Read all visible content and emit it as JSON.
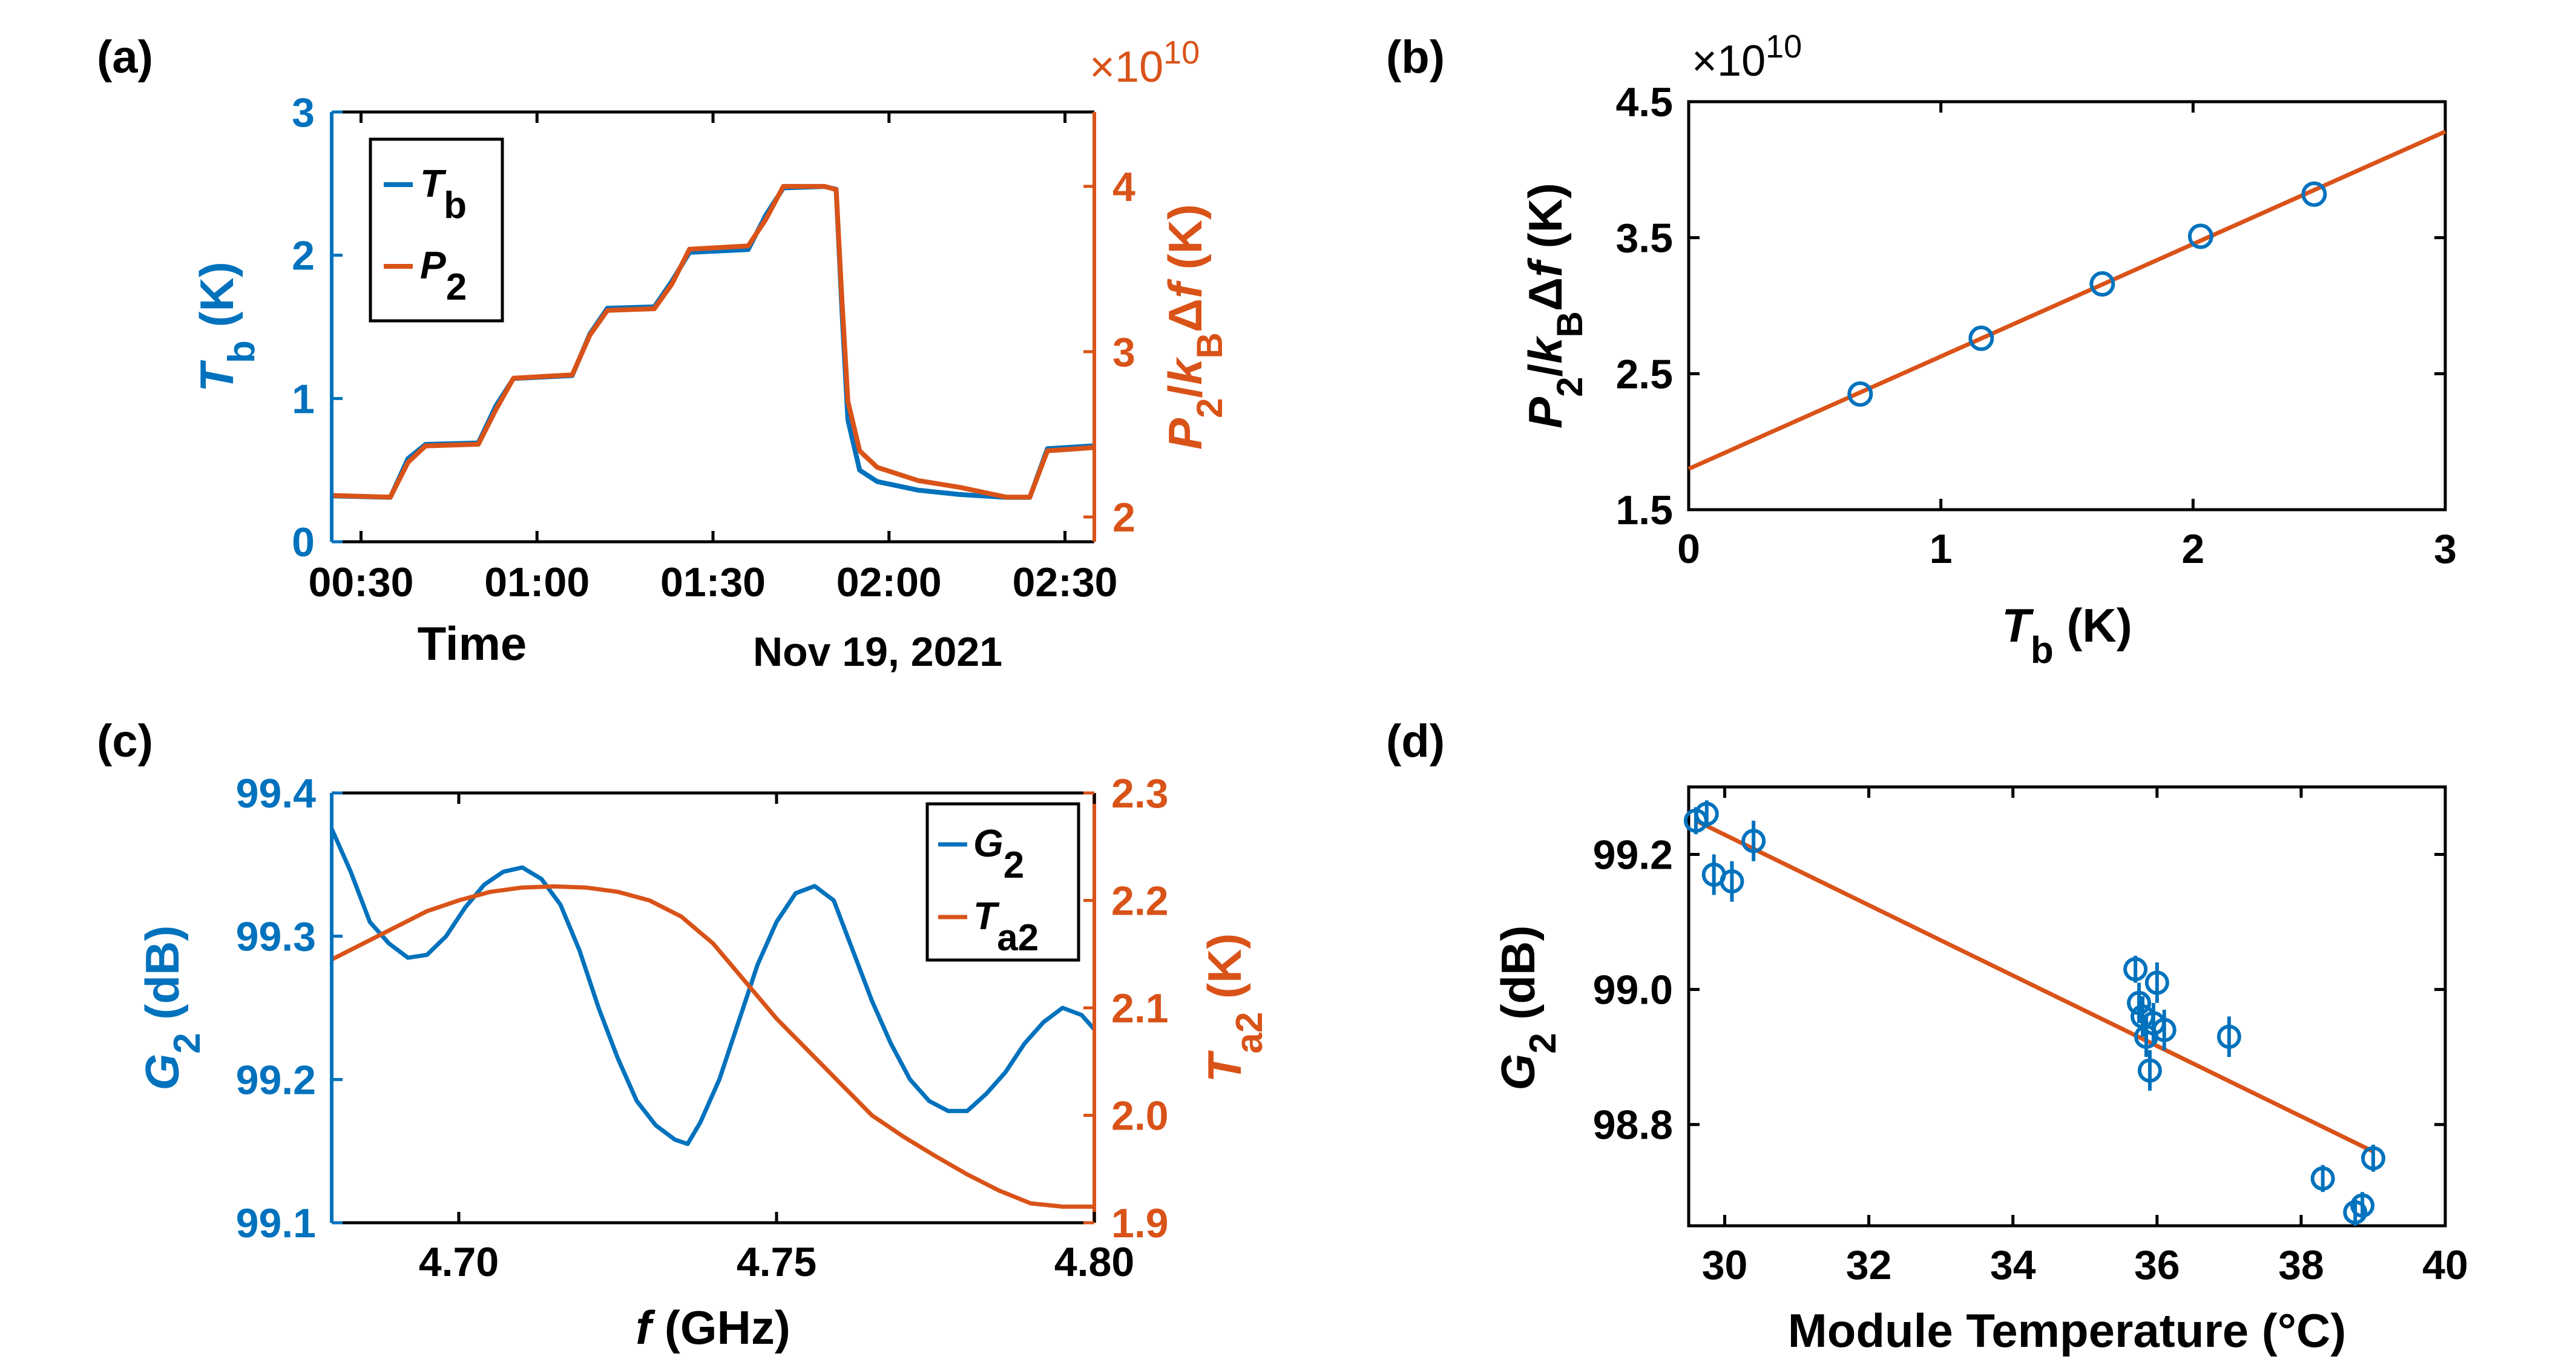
{
  "colors": {
    "blue": "#0072BD",
    "orange": "#D95319",
    "black": "#000000"
  },
  "chart_data": [
    {
      "panel": "(a)",
      "type": "line",
      "xlabel": "Time",
      "xlabel2": "Nov 19, 2021",
      "x_tick_labels": [
        "00:30",
        "01:00",
        "01:30",
        "02:00",
        "02:30"
      ],
      "x_ticks": [
        "00:30",
        "01:00",
        "01:30",
        "02:00",
        "02:30"
      ],
      "xlim": [
        "00:25",
        "02:35"
      ],
      "y_left": {
        "label_main": "T",
        "label_sub": "b",
        "unit": " (K)",
        "ylim": [
          0,
          3
        ],
        "ticks": [
          0,
          1,
          2,
          3
        ],
        "tick_labels": [
          "0",
          "1",
          "2",
          "3"
        ]
      },
      "y_right": {
        "label": "P2/kBΔf (K)",
        "ylim": [
          1.85,
          4.45
        ],
        "ticks": [
          2,
          3,
          4
        ],
        "tick_labels": [
          "2",
          "3",
          "4"
        ],
        "exponent": "×10",
        "exponent_power": "10"
      },
      "legend": {
        "placement": "top-left",
        "entries": [
          {
            "main": "T",
            "sub": "b"
          },
          {
            "main": "P",
            "sub": "2"
          }
        ]
      },
      "series": [
        {
          "name": "Tb",
          "axis": "left",
          "x": [
            "00:25",
            "00:35",
            "00:38",
            "00:41",
            "00:50",
            "00:53",
            "00:56",
            "01:06",
            "01:09",
            "01:12",
            "01:20",
            "01:23",
            "01:26",
            "01:36",
            "01:39",
            "01:42",
            "01:49",
            "01:51",
            "01:52",
            "01:53",
            "01:55",
            "01:58",
            "02:05",
            "02:12",
            "02:20",
            "02:24",
            "02:27",
            "02:35"
          ],
          "y": [
            0.32,
            0.31,
            0.58,
            0.68,
            0.69,
            0.95,
            1.14,
            1.16,
            1.45,
            1.63,
            1.64,
            1.82,
            2.02,
            2.04,
            2.28,
            2.47,
            2.48,
            2.46,
            1.6,
            0.85,
            0.5,
            0.42,
            0.36,
            0.33,
            0.31,
            0.31,
            0.65,
            0.67
          ]
        },
        {
          "name": "P2",
          "axis": "right",
          "x": [
            "00:25",
            "00:35",
            "00:38",
            "00:41",
            "00:50",
            "00:53",
            "00:56",
            "01:06",
            "01:09",
            "01:12",
            "01:20",
            "01:23",
            "01:26",
            "01:36",
            "01:39",
            "01:42",
            "01:49",
            "01:51",
            "01:52",
            "01:53",
            "01:55",
            "01:58",
            "02:05",
            "02:12",
            "02:20",
            "02:24",
            "02:27",
            "02:35"
          ],
          "y": [
            2.13,
            2.12,
            2.33,
            2.43,
            2.44,
            2.65,
            2.84,
            2.86,
            3.1,
            3.25,
            3.26,
            3.41,
            3.62,
            3.64,
            3.8,
            4.0,
            4.0,
            3.98,
            3.3,
            2.7,
            2.4,
            2.3,
            2.22,
            2.18,
            2.12,
            2.12,
            2.4,
            2.42
          ]
        }
      ]
    },
    {
      "panel": "(b)",
      "type": "scatter",
      "xlabel_main": "T",
      "xlabel_sub": "b",
      "xlabel_unit": " (K)",
      "ylabel": "P2/kBΔf (K)",
      "xlim": [
        0,
        3
      ],
      "ylim": [
        1.5,
        4.5
      ],
      "x_ticks": [
        0,
        1,
        2,
        3
      ],
      "x_tick_labels": [
        "0",
        "1",
        "2",
        "3"
      ],
      "y_ticks": [
        1.5,
        2.5,
        3.5,
        4.5
      ],
      "y_tick_labels": [
        "1.5",
        "2.5",
        "3.5",
        "4.5"
      ],
      "exponent": "×10",
      "exponent_power": "10",
      "points": {
        "x": [
          0.68,
          1.16,
          1.64,
          2.03,
          2.48
        ],
        "y": [
          2.35,
          2.76,
          3.16,
          3.51,
          3.82
        ]
      },
      "fit_line": {
        "x": [
          0,
          3
        ],
        "y": [
          1.8,
          4.28
        ]
      }
    },
    {
      "panel": "(c)",
      "type": "line",
      "xlabel_main": "f",
      "xlabel_unit": " (GHz)",
      "xlim": [
        4.68,
        4.8
      ],
      "x_ticks": [
        4.7,
        4.75,
        4.8
      ],
      "x_tick_labels": [
        "4.70",
        "4.75",
        "4.80"
      ],
      "y_left": {
        "label_main": "G",
        "label_sub": "2",
        "unit": " (dB)",
        "ylim": [
          99.1,
          99.4
        ],
        "ticks": [
          99.1,
          99.2,
          99.3,
          99.4
        ],
        "tick_labels": [
          "99.1",
          "99.2",
          "99.3",
          "99.4"
        ]
      },
      "y_right": {
        "label_main": "T",
        "label_sub": "a2",
        "unit": " (K)",
        "ylim": [
          1.9,
          2.3
        ],
        "ticks": [
          1.9,
          2.0,
          2.1,
          2.2,
          2.3
        ],
        "tick_labels": [
          "1.9",
          "2.0",
          "2.1",
          "2.2",
          "2.3"
        ]
      },
      "legend": {
        "placement": "top-right",
        "entries": [
          {
            "main": "G",
            "sub": "2"
          },
          {
            "main": "T",
            "sub": "a2"
          }
        ]
      },
      "series": [
        {
          "name": "G2",
          "axis": "left",
          "x": [
            4.68,
            4.683,
            4.686,
            4.689,
            4.692,
            4.695,
            4.698,
            4.701,
            4.704,
            4.707,
            4.71,
            4.713,
            4.716,
            4.719,
            4.722,
            4.725,
            4.728,
            4.731,
            4.734,
            4.736,
            4.738,
            4.741,
            4.744,
            4.747,
            4.75,
            4.753,
            4.756,
            4.759,
            4.762,
            4.765,
            4.768,
            4.771,
            4.774,
            4.777,
            4.78,
            4.783,
            4.786,
            4.789,
            4.792,
            4.795,
            4.798,
            4.8
          ],
          "y": [
            99.375,
            99.345,
            99.31,
            99.295,
            99.285,
            99.287,
            99.3,
            99.32,
            99.336,
            99.345,
            99.348,
            99.34,
            99.322,
            99.29,
            99.25,
            99.215,
            99.185,
            99.168,
            99.158,
            99.155,
            99.17,
            99.2,
            99.24,
            99.28,
            99.31,
            99.33,
            99.335,
            99.325,
            99.29,
            99.255,
            99.225,
            99.2,
            99.185,
            99.178,
            99.178,
            99.19,
            99.205,
            99.225,
            99.24,
            99.25,
            99.245,
            99.235
          ]
        },
        {
          "name": "Ta2",
          "axis": "right",
          "x": [
            4.68,
            4.685,
            4.69,
            4.695,
            4.7,
            4.705,
            4.71,
            4.715,
            4.72,
            4.725,
            4.73,
            4.735,
            4.74,
            4.745,
            4.75,
            4.755,
            4.76,
            4.765,
            4.77,
            4.775,
            4.78,
            4.785,
            4.79,
            4.795,
            4.8
          ],
          "y": [
            2.145,
            2.16,
            2.175,
            2.19,
            2.2,
            2.208,
            2.212,
            2.213,
            2.212,
            2.208,
            2.2,
            2.185,
            2.16,
            2.125,
            2.09,
            2.06,
            2.03,
            2.0,
            1.98,
            1.962,
            1.945,
            1.93,
            1.918,
            1.915,
            1.915
          ]
        }
      ]
    },
    {
      "panel": "(d)",
      "type": "scatter",
      "xlabel": "Module Temperature (°C)",
      "ylabel_main": "G",
      "ylabel_sub": "2",
      "ylabel_unit": " (dB)",
      "xlim": [
        29.5,
        40
      ],
      "ylim": [
        98.65,
        99.3
      ],
      "x_ticks": [
        30,
        32,
        34,
        36,
        38,
        40
      ],
      "x_tick_labels": [
        "30",
        "32",
        "34",
        "36",
        "38",
        "40"
      ],
      "y_ticks": [
        98.8,
        99.0,
        99.2
      ],
      "y_tick_labels": [
        "98.8",
        "99.0",
        "99.2"
      ],
      "points": {
        "x": [
          29.6,
          29.75,
          29.85,
          30.1,
          30.4,
          35.7,
          35.75,
          35.8,
          35.85,
          35.9,
          35.95,
          36.0,
          36.1,
          37.0,
          38.3,
          38.75,
          38.85,
          39.0
        ],
        "y": [
          99.25,
          99.26,
          99.17,
          99.16,
          99.22,
          99.03,
          98.98,
          98.96,
          98.93,
          98.88,
          98.95,
          99.01,
          98.94,
          98.93,
          98.72,
          98.67,
          98.68,
          98.75
        ],
        "err": [
          0.02,
          0.02,
          0.03,
          0.03,
          0.03,
          0.02,
          0.03,
          0.03,
          0.03,
          0.03,
          0.03,
          0.03,
          0.03,
          0.03,
          0.02,
          0.02,
          0.02,
          0.02
        ]
      },
      "fit_line": {
        "x": [
          29.6,
          39.0
        ],
        "y": [
          99.25,
          98.76
        ]
      }
    }
  ]
}
